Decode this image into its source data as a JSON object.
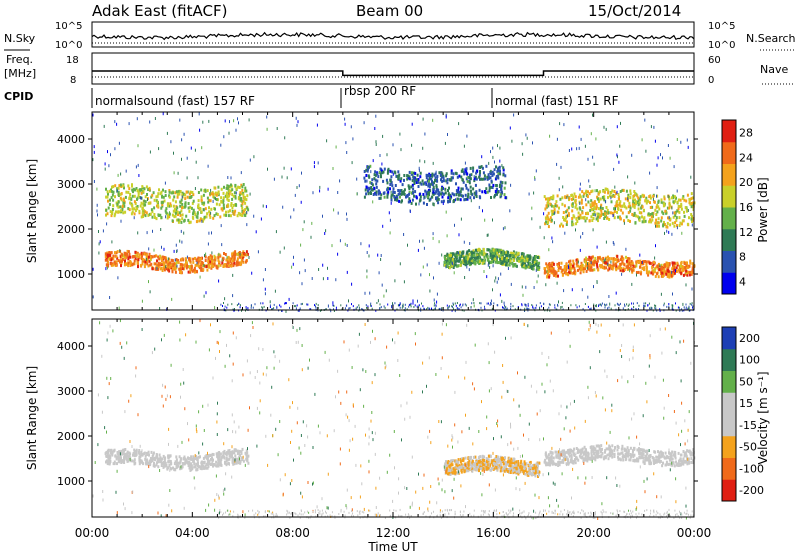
{
  "header": {
    "station": "Adak East (fitACF)",
    "beam": "Beam 00",
    "date": "15/Oct/2014"
  },
  "noise_panel": {
    "left_label": "N.Sky",
    "right_label": "N.Search",
    "left_ticks": [
      "10^5",
      "10^0"
    ],
    "right_ticks": [
      "10^5",
      "10^0"
    ]
  },
  "freq_panel": {
    "left_label_1": "Freq.",
    "left_label_2": "[MHz]",
    "right_label": "Nave",
    "left_ticks": [
      "18",
      "8"
    ],
    "right_ticks": [
      "60",
      "0"
    ],
    "freq_mhz": [
      {
        "t": 0.0,
        "f": 13.0
      },
      {
        "t": 10.0,
        "f": 11.3
      },
      {
        "t": 18.0,
        "f": 13.0
      },
      {
        "t": 24.0,
        "f": 13.0
      }
    ]
  },
  "cpid": {
    "label": "CPID",
    "segments": [
      {
        "name": "normalsound (fast) 157 RF",
        "start": 0,
        "end": 10
      },
      {
        "name": "rbsp 200 RF",
        "start": 10,
        "end": 16
      },
      {
        "name": "normal (fast) 151 RF",
        "start": 16,
        "end": 24
      }
    ]
  },
  "chart_data": [
    {
      "type": "heatmap",
      "title": "Power",
      "ylabel": "Slant Range [km]",
      "y_ticks": [
        "4000",
        "3000",
        "2000",
        "1000"
      ],
      "ylim": [
        200,
        4600
      ],
      "xlim": [
        0,
        24
      ],
      "colorbar": {
        "label": "Power [dB]",
        "ticks": [
          "28",
          "24",
          "20",
          "16",
          "12",
          "8",
          "4"
        ],
        "range": [
          0,
          30
        ]
      },
      "echo_regions": [
        {
          "t_start": 0.5,
          "t_end": 6.2,
          "range_km": 1300,
          "power_db": 24
        },
        {
          "t_start": 0.5,
          "t_end": 6.2,
          "range_km": 2600,
          "power_db": 16
        },
        {
          "t_start": 14.0,
          "t_end": 17.8,
          "range_km": 1350,
          "power_db": 12
        },
        {
          "t_start": 10.8,
          "t_end": 16.5,
          "range_km": 3000,
          "power_db": 6
        },
        {
          "t_start": 18.0,
          "t_end": 24.0,
          "range_km": 1200,
          "power_db": 24
        },
        {
          "t_start": 18.0,
          "t_end": 24.0,
          "range_km": 2500,
          "power_db": 18
        }
      ]
    },
    {
      "type": "heatmap",
      "title": "Velocity",
      "ylabel": "Slant Range [km]",
      "y_ticks": [
        "4000",
        "3000",
        "2000",
        "1000"
      ],
      "ylim": [
        200,
        4600
      ],
      "xlim": [
        0,
        24
      ],
      "xlabel": "Time UT",
      "x_ticks": [
        "00:00",
        "04:00",
        "08:00",
        "12:00",
        "16:00",
        "20:00",
        "00:00"
      ],
      "colorbar": {
        "label": "Velocity [m s⁻¹]",
        "ticks": [
          "200",
          "100",
          "50",
          "15",
          "-15",
          "-50",
          "-100",
          "-200"
        ],
        "range": [
          -250,
          250
        ]
      },
      "echo_regions": [
        {
          "t_start": 0.5,
          "t_end": 6.2,
          "range_km": 1500,
          "velocity": 0
        },
        {
          "t_start": 14.0,
          "t_end": 17.8,
          "range_km": 1350,
          "velocity": -70
        },
        {
          "t_start": 18.0,
          "t_end": 24.0,
          "range_km": 1600,
          "velocity": 0
        }
      ]
    }
  ],
  "colors": {
    "power_scale": [
      "#0000ee",
      "#2a52b0",
      "#2f7a55",
      "#63b04a",
      "#c9d02a",
      "#f4a21c",
      "#f06a1a",
      "#e01f12"
    ],
    "velocity_scale": [
      "#e01f12",
      "#f06a1a",
      "#f4a21c",
      "#c8c8c8",
      "#c8c8c8",
      "#63b04a",
      "#2f7a55",
      "#1d3fb5"
    ],
    "ground": "#c8c8c8"
  }
}
